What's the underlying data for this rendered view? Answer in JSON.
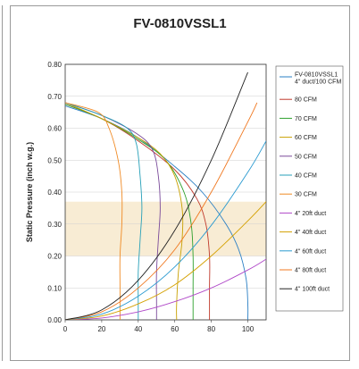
{
  "chart_data": {
    "type": "line",
    "title": "FV-0810VSSL1",
    "ylabel": "Static Pressure (inch w.g.)",
    "xlabel": "",
    "xlim": [
      0,
      110
    ],
    "ylim": [
      0,
      0.8
    ],
    "x_ticks": [
      "0",
      "20",
      "40",
      "60",
      "80",
      "100"
    ],
    "y_ticks": [
      "0.00",
      "0.10",
      "0.20",
      "0.30",
      "0.40",
      "0.50",
      "0.60",
      "0.70",
      "0.80"
    ],
    "band": {
      "y_from": 0.2,
      "y_to": 0.37,
      "color": "#f8ecd4"
    },
    "legend_position": "right",
    "series": [
      {
        "name": "FV-0810VSSL1 4\" duct/100 CFM",
        "color": "#2a7fc4",
        "group": "fan",
        "points": [
          [
            0,
            0.67
          ],
          [
            20,
            0.63
          ],
          [
            40,
            0.57
          ],
          [
            60,
            0.48
          ],
          [
            75,
            0.4
          ],
          [
            88,
            0.3
          ],
          [
            95,
            0.22
          ],
          [
            99,
            0.13
          ],
          [
            100,
            0.05
          ],
          [
            100,
            0
          ]
        ]
      },
      {
        "name": "80 CFM",
        "color": "#c0392b",
        "group": "fan",
        "points": [
          [
            0,
            0.675
          ],
          [
            20,
            0.63
          ],
          [
            40,
            0.56
          ],
          [
            60,
            0.47
          ],
          [
            72,
            0.38
          ],
          [
            77,
            0.3
          ],
          [
            79,
            0.2
          ],
          [
            79,
            0.1
          ],
          [
            79,
            0
          ]
        ]
      },
      {
        "name": "70 CFM",
        "color": "#2ca02c",
        "group": "fan",
        "points": [
          [
            0,
            0.675
          ],
          [
            20,
            0.63
          ],
          [
            40,
            0.565
          ],
          [
            55,
            0.5
          ],
          [
            65,
            0.4
          ],
          [
            69,
            0.3
          ],
          [
            70,
            0.2
          ],
          [
            70,
            0.1
          ],
          [
            70,
            0
          ]
        ]
      },
      {
        "name": "60 CFM",
        "color": "#c8a000",
        "group": "fan",
        "points": [
          [
            0,
            0.68
          ],
          [
            20,
            0.63
          ],
          [
            40,
            0.57
          ],
          [
            52,
            0.52
          ],
          [
            60,
            0.45
          ],
          [
            64,
            0.35
          ],
          [
            64,
            0.25
          ],
          [
            62,
            0.15
          ],
          [
            61,
            0.05
          ],
          [
            61,
            0
          ]
        ]
      },
      {
        "name": "50 CFM",
        "color": "#7a4a9a",
        "group": "fan",
        "points": [
          [
            0,
            0.68
          ],
          [
            20,
            0.64
          ],
          [
            40,
            0.58
          ],
          [
            48,
            0.53
          ],
          [
            51,
            0.45
          ],
          [
            52,
            0.35
          ],
          [
            51,
            0.25
          ],
          [
            50,
            0.15
          ],
          [
            50,
            0.05
          ],
          [
            50,
            0
          ]
        ]
      },
      {
        "name": "40 CFM",
        "color": "#27a0b8",
        "group": "fan",
        "points": [
          [
            0,
            0.68
          ],
          [
            20,
            0.64
          ],
          [
            34,
            0.6
          ],
          [
            39,
            0.55
          ],
          [
            41,
            0.45
          ],
          [
            42,
            0.35
          ],
          [
            41,
            0.25
          ],
          [
            40,
            0.15
          ],
          [
            40,
            0.05
          ],
          [
            40,
            0
          ]
        ]
      },
      {
        "name": "30 CFM",
        "color": "#f08a24",
        "group": "fan",
        "points": [
          [
            0,
            0.68
          ],
          [
            18,
            0.65
          ],
          [
            24,
            0.6
          ],
          [
            29,
            0.5
          ],
          [
            31,
            0.4
          ],
          [
            31,
            0.3
          ],
          [
            30,
            0.2
          ],
          [
            30,
            0.1
          ],
          [
            30,
            0
          ]
        ]
      },
      {
        "name": "4\" 20ft duct",
        "color": "#b048c8",
        "group": "duct",
        "points": [
          [
            0,
            0
          ],
          [
            20,
            0.006
          ],
          [
            40,
            0.025
          ],
          [
            60,
            0.057
          ],
          [
            80,
            0.1
          ],
          [
            100,
            0.156
          ],
          [
            110,
            0.19
          ]
        ]
      },
      {
        "name": "4\" 40ft duct",
        "color": "#d4a000",
        "group": "duct",
        "points": [
          [
            0,
            0
          ],
          [
            20,
            0.012
          ],
          [
            40,
            0.05
          ],
          [
            60,
            0.11
          ],
          [
            80,
            0.2
          ],
          [
            100,
            0.31
          ],
          [
            110,
            0.37
          ]
        ]
      },
      {
        "name": "4\" 60ft duct",
        "color": "#2a9ad0",
        "group": "duct",
        "points": [
          [
            0,
            0
          ],
          [
            20,
            0.018
          ],
          [
            40,
            0.074
          ],
          [
            60,
            0.166
          ],
          [
            80,
            0.296
          ],
          [
            100,
            0.462
          ],
          [
            110,
            0.56
          ]
        ]
      },
      {
        "name": "4\" 80ft duct",
        "color": "#f07820",
        "group": "duct",
        "points": [
          [
            0,
            0
          ],
          [
            20,
            0.025
          ],
          [
            40,
            0.1
          ],
          [
            60,
            0.22
          ],
          [
            80,
            0.4
          ],
          [
            100,
            0.62
          ],
          [
            105,
            0.68
          ]
        ]
      },
      {
        "name": "4\" 100ft duct",
        "color": "#222222",
        "group": "duct",
        "points": [
          [
            0,
            0
          ],
          [
            20,
            0.031
          ],
          [
            40,
            0.124
          ],
          [
            60,
            0.28
          ],
          [
            80,
            0.5
          ],
          [
            100,
            0.775
          ]
        ]
      }
    ]
  }
}
